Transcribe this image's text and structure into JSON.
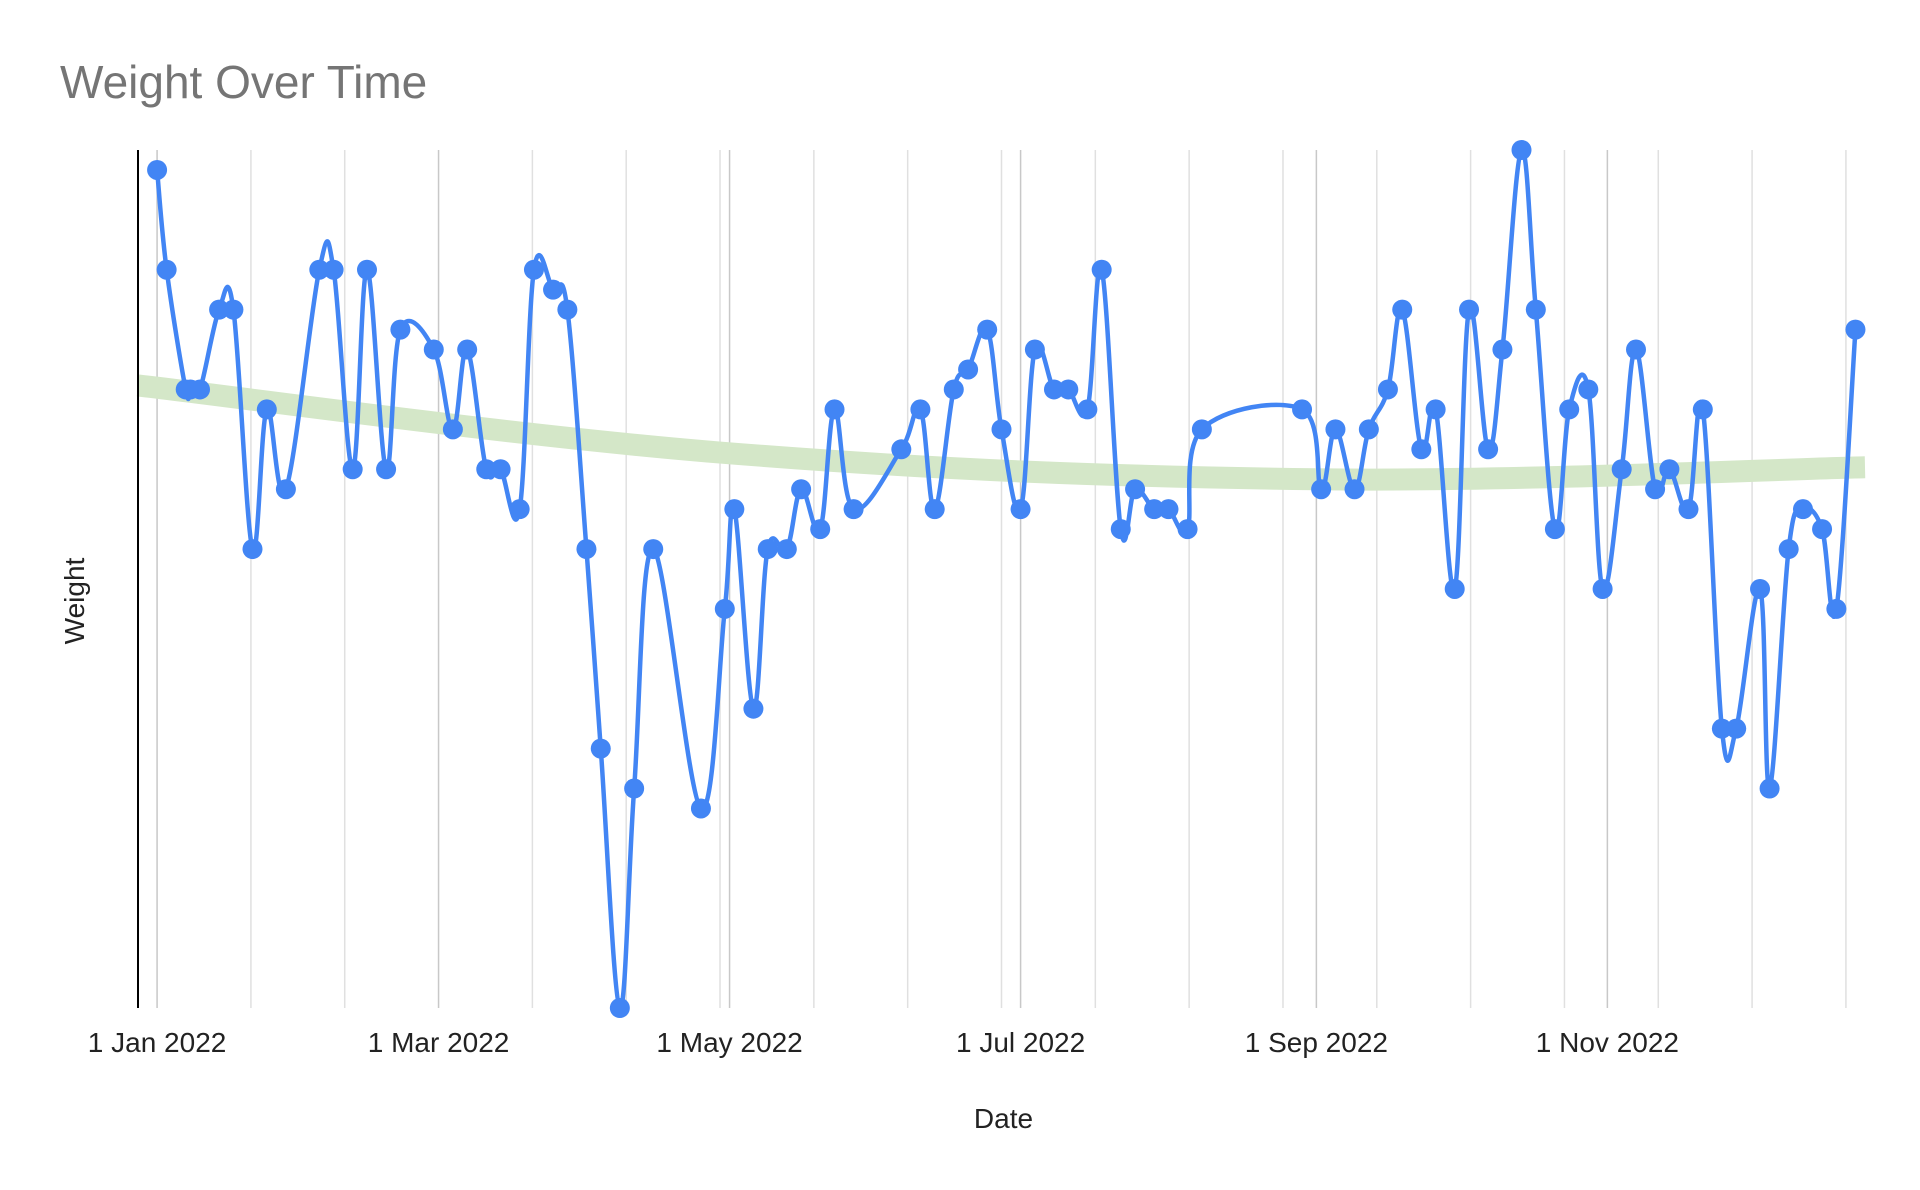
{
  "chart_data": {
    "type": "line",
    "title": "Weight Over Time",
    "xlabel": "Date",
    "ylabel": "Weight",
    "x_tick_labels": [
      "1 Jan 2022",
      "1 Mar 2022",
      "1 May 2022",
      "1 Jul 2022",
      "1 Sep 2022",
      "1 Nov 2022"
    ],
    "x_ticks": [
      "2022-01-01",
      "2022-03-01",
      "2022-05-01",
      "2022-07-01",
      "2022-09-01",
      "2022-11-01"
    ],
    "xlim": [
      "2021-12-28",
      "2022-12-25"
    ],
    "ylim": [
      0,
      43
    ],
    "y_tick_labels": [],
    "grid": true,
    "legend": "none",
    "colors": {
      "series": "#4285F4",
      "trendline": "#D4E7C8",
      "grid": "#E0E0E0",
      "major_grid": "#C8C8C8"
    },
    "series": [
      {
        "x": [
          "2022-01-01",
          "2022-01-03",
          "2022-01-07",
          "2022-01-08",
          "2022-01-10",
          "2022-01-14",
          "2022-01-17",
          "2022-01-21",
          "2022-01-24",
          "2022-01-28",
          "2022-02-04",
          "2022-02-07",
          "2022-02-11",
          "2022-02-14",
          "2022-02-18",
          "2022-02-21",
          "2022-02-28",
          "2022-03-04",
          "2022-03-07",
          "2022-03-11",
          "2022-03-14",
          "2022-03-18",
          "2022-03-21",
          "2022-03-25",
          "2022-03-28",
          "2022-04-01",
          "2022-04-04",
          "2022-04-08",
          "2022-04-11",
          "2022-04-15",
          "2022-04-25",
          "2022-04-30",
          "2022-05-02",
          "2022-05-06",
          "2022-05-09",
          "2022-05-13",
          "2022-05-16",
          "2022-05-20",
          "2022-05-23",
          "2022-05-27",
          "2022-06-06",
          "2022-06-10",
          "2022-06-13",
          "2022-06-17",
          "2022-06-20",
          "2022-06-24",
          "2022-06-27",
          "2022-07-01",
          "2022-07-04",
          "2022-07-08",
          "2022-07-11",
          "2022-07-15",
          "2022-07-18",
          "2022-07-22",
          "2022-07-25",
          "2022-07-29",
          "2022-08-01",
          "2022-08-05",
          "2022-08-08",
          "2022-08-29",
          "2022-09-02",
          "2022-09-05",
          "2022-09-09",
          "2022-09-12",
          "2022-09-16",
          "2022-09-19",
          "2022-09-23",
          "2022-09-26",
          "2022-09-30",
          "2022-10-03",
          "2022-10-07",
          "2022-10-10",
          "2022-10-14",
          "2022-10-17",
          "2022-10-21",
          "2022-10-24",
          "2022-10-28",
          "2022-10-31",
          "2022-11-04",
          "2022-11-07",
          "2022-11-11",
          "2022-11-14",
          "2022-11-18",
          "2022-11-21",
          "2022-11-25",
          "2022-11-28",
          "2022-12-03",
          "2022-12-05",
          "2022-12-09",
          "2022-12-12",
          "2022-12-16",
          "2022-12-19",
          "2022-12-23"
        ],
        "y": [
          42,
          37,
          31,
          31,
          31,
          35,
          35,
          23,
          30,
          26,
          37,
          37,
          27,
          37,
          27,
          34,
          33,
          29,
          33,
          27,
          27,
          25,
          37,
          36,
          35,
          23,
          13,
          0,
          11,
          23,
          10,
          20,
          25,
          15,
          23,
          23,
          26,
          24,
          30,
          25,
          28,
          30,
          25,
          31,
          32,
          34,
          29,
          25,
          33,
          31,
          31,
          30,
          37,
          24,
          26,
          25,
          25,
          24,
          29,
          30,
          26,
          29,
          26,
          29,
          31,
          35,
          28,
          30,
          21,
          35,
          28,
          33,
          43,
          35,
          24,
          30,
          31,
          21,
          27,
          33,
          26,
          27,
          25,
          30,
          14,
          14,
          21,
          11,
          23,
          25,
          24,
          20,
          34
        ]
      }
    ],
    "trendline": {
      "x": [
        "2021-12-28",
        "2022-05-01",
        "2022-09-01",
        "2022-12-25"
      ],
      "y": [
        31.2,
        27.8,
        26.5,
        27.1
      ]
    }
  }
}
